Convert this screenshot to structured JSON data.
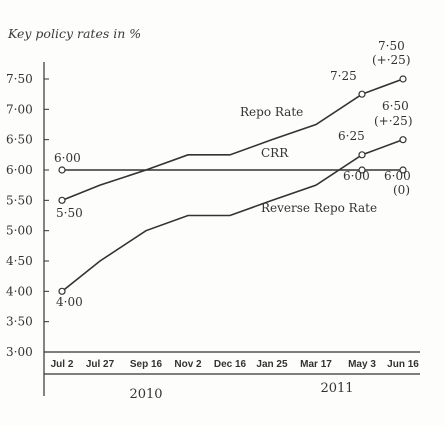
{
  "chart_data": {
    "type": "line",
    "title": "Key policy rates in %",
    "categories": [
      "Jul 2",
      "Jul 27",
      "Sep 16",
      "Nov 2",
      "Dec 16",
      "Jan 25",
      "Mar 17",
      "May 3",
      "Jun 16"
    ],
    "years": [
      {
        "label": "2010",
        "categories": [
          "Jul 2",
          "Jul 27",
          "Sep 16",
          "Nov 2",
          "Dec 16"
        ]
      },
      {
        "label": "2011",
        "categories": [
          "Jan 25",
          "Mar 17",
          "May 3",
          "Jun 16"
        ]
      }
    ],
    "ylim": [
      3.0,
      7.75
    ],
    "yticks": [
      "3·00",
      "3·50",
      "4·00",
      "4·50",
      "5·00",
      "5·50",
      "6·00",
      "6·50",
      "7·00",
      "7·50"
    ],
    "yticks_values": [
      3.0,
      3.5,
      4.0,
      4.5,
      5.0,
      5.5,
      6.0,
      6.5,
      7.0,
      7.5
    ],
    "grid": false,
    "series": [
      {
        "name": "Repo Rate",
        "values": [
          5.5,
          5.75,
          6.0,
          6.25,
          6.25,
          6.5,
          6.75,
          7.25,
          7.5
        ],
        "color": "#333333",
        "labels": [
          {
            "index": 0,
            "text": "5·50"
          },
          {
            "index": 7,
            "text": "7·25"
          },
          {
            "index": 8,
            "text": "7·50"
          },
          {
            "index": 8,
            "text": "(+·25)"
          }
        ]
      },
      {
        "name": "CRR",
        "values": [
          6.0,
          6.0,
          6.0,
          6.0,
          6.0,
          6.0,
          6.0,
          6.0,
          6.0
        ],
        "color": "#333333",
        "labels": [
          {
            "index": 0,
            "text": "6·00"
          },
          {
            "index": 7,
            "text": "6·00"
          },
          {
            "index": 8,
            "text": "6·00"
          },
          {
            "index": 8,
            "text": "(0)"
          }
        ]
      },
      {
        "name": "Reverse Repo Rate",
        "values": [
          4.0,
          4.5,
          5.0,
          5.25,
          5.25,
          5.5,
          5.75,
          6.25,
          6.5
        ],
        "color": "#333333",
        "labels": [
          {
            "index": 0,
            "text": "4·00"
          },
          {
            "index": 7,
            "text": "6·25"
          },
          {
            "index": 8,
            "text": "6·50"
          },
          {
            "index": 8,
            "text": "(+·25)"
          }
        ]
      }
    ]
  }
}
